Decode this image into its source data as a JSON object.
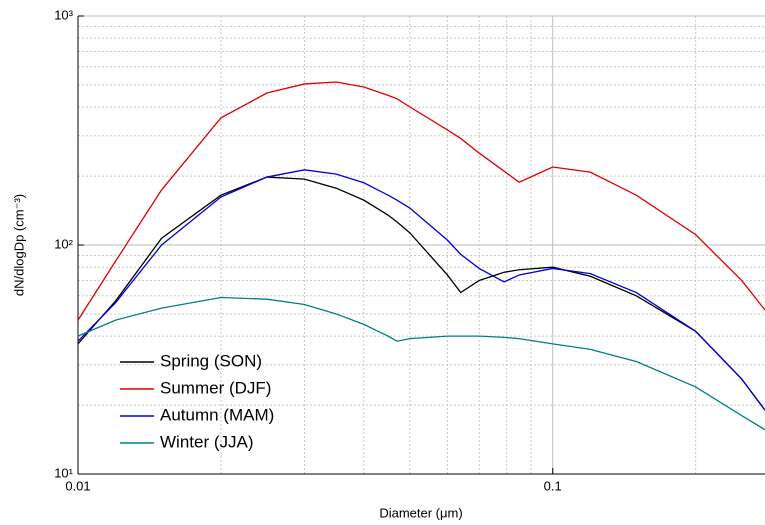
{
  "chart_data": {
    "type": "line",
    "x_label": "Diameter (μm)",
    "y_label": "dN/dlogDp (cm⁻³)",
    "x": [
      0.01,
      0.012,
      0.015,
      0.02,
      0.025,
      0.03,
      0.035,
      0.04,
      0.045,
      0.047,
      0.05,
      0.06,
      0.064,
      0.07,
      0.079,
      0.085,
      0.1,
      0.12,
      0.15,
      0.2,
      0.25,
      0.28
    ],
    "series": [
      {
        "name": "Spring (SON)",
        "color": "#000000",
        "values": [
          37,
          57,
          107,
          165,
          198,
          194,
          177,
          157,
          135,
          126,
          113,
          74,
          62,
          70,
          76,
          78,
          80,
          73,
          60,
          42,
          26,
          19
        ]
      },
      {
        "name": "Summer (DJF)",
        "color": "#e00000",
        "values": [
          47,
          85,
          174,
          359,
          461,
          505,
          515,
          490,
          450,
          435,
          401,
          318,
          292,
          252,
          210,
          188,
          219,
          208,
          165,
          111,
          70,
          52
        ]
      },
      {
        "name": "Autumn (MAM)",
        "color": "#0000e0",
        "values": [
          38,
          56,
          100,
          162,
          198,
          213,
          204,
          187,
          165,
          157,
          145,
          105,
          91,
          79,
          69,
          74,
          79,
          75,
          62,
          42,
          26,
          19
        ]
      },
      {
        "name": "Winter (JJA)",
        "color": "#008080",
        "values": [
          40,
          47,
          53,
          59,
          58,
          55,
          50,
          45,
          40,
          38,
          39,
          40,
          40,
          40,
          39.5,
          39,
          37,
          35,
          31,
          24,
          18,
          15.6
        ]
      }
    ],
    "x_log": true,
    "y_log": true,
    "xlim": [
      0.01,
      0.28
    ],
    "ylim": [
      10,
      1000
    ],
    "xticks": [
      0.01,
      0.1
    ],
    "yticks": [
      {
        "value": 10,
        "label": "10¹"
      },
      {
        "value": 100,
        "label": "10²"
      },
      {
        "value": 1000,
        "label": "10³"
      }
    ],
    "x_minor_grid": [
      0.02,
      0.03,
      0.04,
      0.05,
      0.06,
      0.07,
      0.08,
      0.09,
      0.2
    ],
    "y_minor_grid": [
      20,
      30,
      40,
      50,
      60,
      70,
      80,
      90,
      200,
      300,
      400,
      500,
      600,
      700,
      800,
      900
    ],
    "grid": true,
    "legend": "lower left"
  }
}
